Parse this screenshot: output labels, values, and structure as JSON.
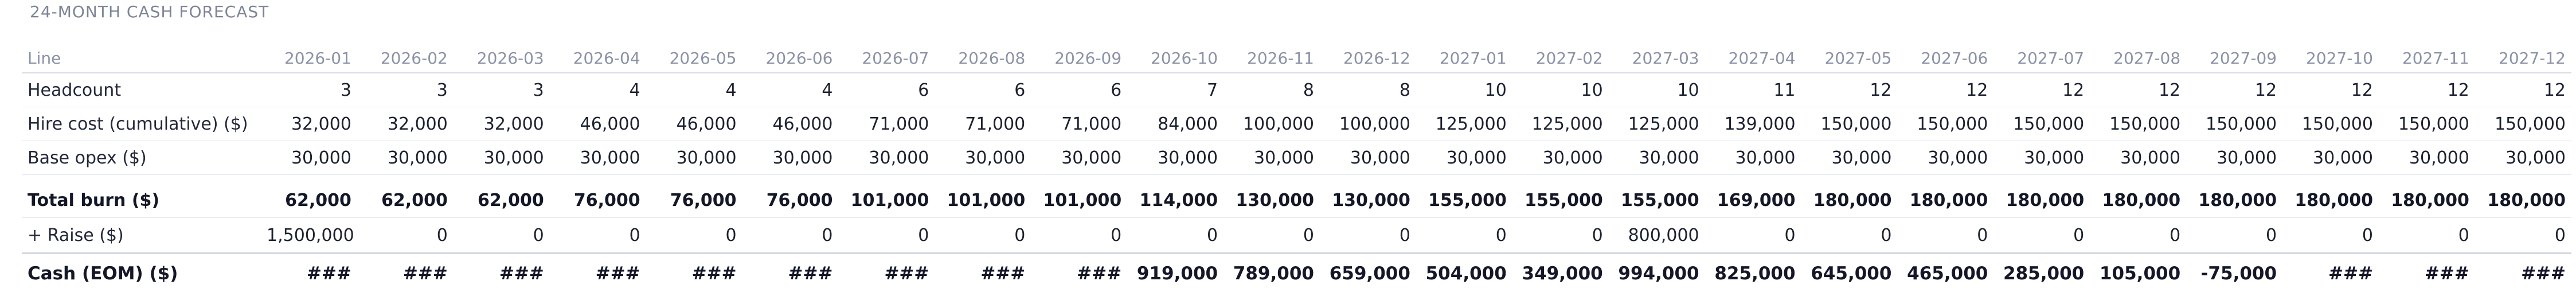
{
  "title": "24-MONTH CASH FORECAST",
  "table": {
    "line_header": "Line",
    "months": [
      "2026-01",
      "2026-02",
      "2026-03",
      "2026-04",
      "2026-05",
      "2026-06",
      "2026-07",
      "2026-08",
      "2026-09",
      "2026-10",
      "2026-11",
      "2026-12",
      "2027-01",
      "2027-02",
      "2027-03",
      "2027-04",
      "2027-05",
      "2027-06",
      "2027-07",
      "2027-08",
      "2027-09",
      "2027-10",
      "2027-11",
      "2027-12"
    ],
    "rows": [
      {
        "label": "Headcount",
        "style": "std",
        "values": [
          "3",
          "3",
          "3",
          "4",
          "4",
          "4",
          "6",
          "6",
          "6",
          "7",
          "8",
          "8",
          "10",
          "10",
          "10",
          "11",
          "12",
          "12",
          "12",
          "12",
          "12",
          "12",
          "12",
          "12"
        ]
      },
      {
        "label": "Hire cost (cumulative) ($)",
        "style": "std",
        "values": [
          "32,000",
          "32,000",
          "32,000",
          "46,000",
          "46,000",
          "46,000",
          "71,000",
          "71,000",
          "71,000",
          "84,000",
          "100,000",
          "100,000",
          "125,000",
          "125,000",
          "125,000",
          "139,000",
          "150,000",
          "150,000",
          "150,000",
          "150,000",
          "150,000",
          "150,000",
          "150,000",
          "150,000"
        ]
      },
      {
        "label": "Base opex ($)",
        "style": "std",
        "values": [
          "30,000",
          "30,000",
          "30,000",
          "30,000",
          "30,000",
          "30,000",
          "30,000",
          "30,000",
          "30,000",
          "30,000",
          "30,000",
          "30,000",
          "30,000",
          "30,000",
          "30,000",
          "30,000",
          "30,000",
          "30,000",
          "30,000",
          "30,000",
          "30,000",
          "30,000",
          "30,000",
          "30,000"
        ]
      },
      {
        "label": "Total burn ($)",
        "style": "bold",
        "values": [
          "62,000",
          "62,000",
          "62,000",
          "76,000",
          "76,000",
          "76,000",
          "101,000",
          "101,000",
          "101,000",
          "114,000",
          "130,000",
          "130,000",
          "155,000",
          "155,000",
          "155,000",
          "169,000",
          "180,000",
          "180,000",
          "180,000",
          "180,000",
          "180,000",
          "180,000",
          "180,000",
          "180,000"
        ]
      },
      {
        "label": "+ Raise ($)",
        "style": "raise",
        "values": [
          "1,500,000",
          "0",
          "0",
          "0",
          "0",
          "0",
          "0",
          "0",
          "0",
          "0",
          "0",
          "0",
          "0",
          "0",
          "800,000",
          "0",
          "0",
          "0",
          "0",
          "0",
          "0",
          "0",
          "0",
          "0"
        ]
      },
      {
        "label": "Cash (EOM) ($)",
        "style": "cash",
        "values": [
          "###",
          "###",
          "###",
          "###",
          "###",
          "###",
          "###",
          "###",
          "###",
          "919,000",
          "789,000",
          "659,000",
          "504,000",
          "349,000",
          "994,000",
          "825,000",
          "645,000",
          "465,000",
          "285,000",
          "105,000",
          "-75,000",
          "###",
          "###",
          "###"
        ]
      }
    ]
  }
}
